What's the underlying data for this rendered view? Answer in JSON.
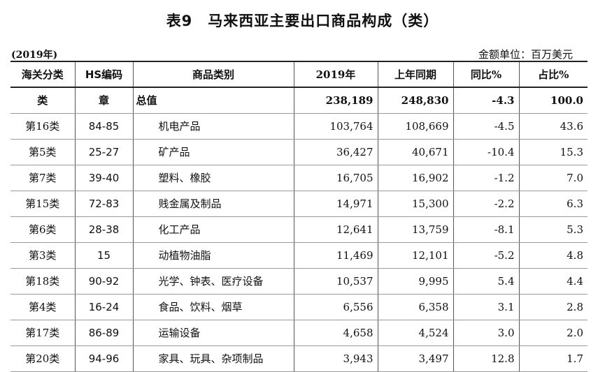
{
  "title": "表9　马来西亚主要出口商品构成（类）",
  "year_note": "(2019年)",
  "unit_note": "金额单位：百万美元",
  "table": {
    "headers": [
      "海关分类",
      "HS编码",
      "商品类别",
      "2019年",
      "上年同期",
      "同比%",
      "占比%"
    ],
    "total": {
      "class": "类",
      "hs": "章",
      "name": "总值",
      "v2019": "238,189",
      "prev": "248,830",
      "yoy": "-4.3",
      "share": "100.0"
    },
    "rows": [
      {
        "class": "第16类",
        "hs": "84-85",
        "name": "机电产品",
        "v2019": "103,764",
        "prev": "108,669",
        "yoy": "-4.5",
        "share": "43.6"
      },
      {
        "class": "第5类",
        "hs": "25-27",
        "name": "矿产品",
        "v2019": "36,427",
        "prev": "40,671",
        "yoy": "-10.4",
        "share": "15.3"
      },
      {
        "class": "第7类",
        "hs": "39-40",
        "name": "塑料、橡胶",
        "v2019": "16,705",
        "prev": "16,902",
        "yoy": "-1.2",
        "share": "7.0"
      },
      {
        "class": "第15类",
        "hs": "72-83",
        "name": "贱金属及制品",
        "v2019": "14,971",
        "prev": "15,300",
        "yoy": "-2.2",
        "share": "6.3"
      },
      {
        "class": "第6类",
        "hs": "28-38",
        "name": "化工产品",
        "v2019": "12,641",
        "prev": "13,759",
        "yoy": "-8.1",
        "share": "5.3"
      },
      {
        "class": "第3类",
        "hs": "15",
        "name": "动植物油脂",
        "v2019": "11,469",
        "prev": "12,101",
        "yoy": "-5.2",
        "share": "4.8"
      },
      {
        "class": "第18类",
        "hs": "90-92",
        "name": "光学、钟表、医疗设备",
        "v2019": "10,537",
        "prev": "9,995",
        "yoy": "5.4",
        "share": "4.4"
      },
      {
        "class": "第4类",
        "hs": "16-24",
        "name": "食品、饮料、烟草",
        "v2019": "6,556",
        "prev": "6,358",
        "yoy": "3.1",
        "share": "2.8"
      },
      {
        "class": "第17类",
        "hs": "86-89",
        "name": "运输设备",
        "v2019": "4,658",
        "prev": "4,524",
        "yoy": "3.0",
        "share": "2.0"
      },
      {
        "class": "第20类",
        "hs": "94-96",
        "name": "家具、玩具、杂项制品",
        "v2019": "3,943",
        "prev": "3,497",
        "yoy": "12.8",
        "share": "1.7"
      }
    ]
  }
}
